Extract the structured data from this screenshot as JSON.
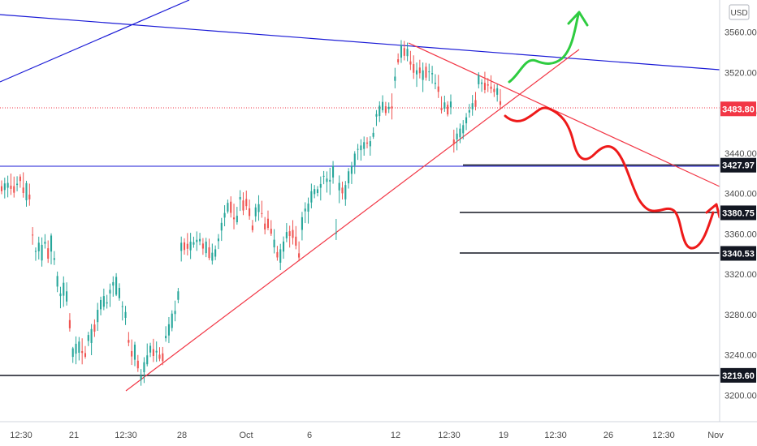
{
  "chart_data": {
    "type": "candlestick",
    "currency": "USD",
    "y_axis": {
      "min": 3180,
      "max": 3590,
      "ticks": [
        "3200.00",
        "3240.00",
        "3280.00",
        "3320.00",
        "3360.00",
        "3400.00",
        "3440.00",
        "3480.00",
        "3520.00",
        "3560.00"
      ]
    },
    "x_axis": {
      "labels": [
        "12:30",
        "21",
        "12:30",
        "28",
        "Oct",
        "6",
        "12",
        "12:30",
        "19",
        "12:30",
        "26",
        "12:30",
        "Nov"
      ]
    },
    "price_badges": [
      {
        "label": "3483.80",
        "value": 3483.8,
        "color": "#f23645"
      },
      {
        "label": "3427.97",
        "value": 3427.97,
        "color": "#131722"
      },
      {
        "label": "3380.75",
        "value": 3380.75,
        "color": "#131722"
      },
      {
        "label": "3340.53",
        "value": 3340.53,
        "color": "#131722"
      },
      {
        "label": "3219.60",
        "value": 3219.6,
        "color": "#131722"
      }
    ],
    "candles": [
      [
        3407.1,
        3412.9,
        3399.2,
        3402.2
      ],
      [
        3403.4,
        3415.6,
        3395.0,
        3409.9
      ],
      [
        3405.6,
        3417.6,
        3396.1,
        3410.4
      ],
      [
        3407.7,
        3419.7,
        3398.5,
        3404.5
      ],
      [
        3407.2,
        3416.7,
        3395.9,
        3400.7
      ],
      [
        3408.4,
        3417.0,
        3402.1,
        3409.6
      ],
      [
        3416.7,
        3419.0,
        3405.6,
        3412.3
      ],
      [
        3405.8,
        3420.9,
        3395.8,
        3400.4
      ],
      [
        3393.2,
        3412.5,
        3386.8,
        3410.2
      ],
      [
        3398.8,
        3409.7,
        3387.8,
        3394.1
      ],
      [
        3359.1,
        3366.6,
        3349.1,
        3358.3
      ],
      [
        3342.2,
        3346.4,
        3333.2,
        3342.9
      ],
      [
        3342.6,
        3357.1,
        3334.5,
        3351.1
      ],
      [
        3333.5,
        3356.4,
        3327.4,
        3349.0
      ],
      [
        3350.1,
        3359.6,
        3345.3,
        3352.0
      ],
      [
        3345.6,
        3353.4,
        3331.1,
        3335.3
      ],
      [
        3342.3,
        3360.4,
        3329.6,
        3358.2
      ],
      [
        3334.1,
        3342.8,
        3329.0,
        3335.8
      ],
      [
        3307.6,
        3322.5,
        3302.1,
        3318.1
      ],
      [
        3298.2,
        3307.4,
        3286.1,
        3300.8
      ],
      [
        3298.6,
        3317.7,
        3287.5,
        3311.4
      ],
      [
        3292.8,
        3311.8,
        3288.8,
        3302.9
      ],
      [
        3274.4,
        3281.3,
        3263.0,
        3266.3
      ],
      [
        3237.9,
        3247.8,
        3231.9,
        3246.4
      ],
      [
        3241.1,
        3258.2,
        3230.6,
        3250.9
      ],
      [
        3242.0,
        3257.6,
        3234.4,
        3253.1
      ],
      [
        3243.6,
        3256.3,
        3230.5,
        3241.8
      ],
      [
        3241.7,
        3248.7,
        3236.1,
        3238.0
      ],
      [
        3253.7,
        3262.8,
        3248.6,
        3259.6
      ],
      [
        3251.7,
        3270.5,
        3239.6,
        3265.5
      ],
      [
        3270.0,
        3275.1,
        3257.7,
        3263.0
      ],
      [
        3272.4,
        3291.5,
        3263.7,
        3284.6
      ],
      [
        3285.1,
        3297.6,
        3279.1,
        3294.3
      ],
      [
        3287.6,
        3305.6,
        3284.2,
        3298.2
      ],
      [
        3290.8,
        3299.4,
        3285.8,
        3292.0
      ],
      [
        3300.8,
        3310.6,
        3287.4,
        3304.4
      ],
      [
        3308.6,
        3317.8,
        3297.6,
        3312.0
      ],
      [
        3299.6,
        3320.9,
        3298.2,
        3317.2
      ],
      [
        3296.1,
        3310.9,
        3293.6,
        3306.3
      ],
      [
        3288.2,
        3293.1,
        3274.0,
        3288.2
      ],
      [
        3276.6,
        3288.5,
        3269.5,
        3282.4
      ],
      [
        3254.7,
        3262.6,
        3248.5,
        3252.0
      ],
      [
        3243.7,
        3255.2,
        3229.9,
        3238.3
      ],
      [
        3235.1,
        3252.9,
        3228.7,
        3250.0
      ],
      [
        3234.1,
        3239.8,
        3223.0,
        3226.6
      ],
      [
        3215.0,
        3225.8,
        3209.3,
        3219.4
      ],
      [
        3222.7,
        3237.6,
        3212.0,
        3232.6
      ],
      [
        3230.6,
        3251.2,
        3228.5,
        3239.4
      ],
      [
        3242.2,
        3251.9,
        3237.7,
        3248.9
      ],
      [
        3245.6,
        3255.8,
        3232.8,
        3238.8
      ],
      [
        3242.3,
        3253.2,
        3233.0,
        3243.9
      ],
      [
        3240.1,
        3247.5,
        3233.6,
        3236.0
      ],
      [
        3241.4,
        3247.7,
        3229.7,
        3233.7
      ],
      [
        3256.4,
        3268.3,
        3252.9,
        3258.7
      ],
      [
        3259.1,
        3277.4,
        3251.6,
        3270.3
      ],
      [
        3266.6,
        3284.1,
        3263.3,
        3280.8
      ],
      [
        3280.4,
        3293.7,
        3273.2,
        3283.5
      ],
      [
        3294.5,
        3306.3,
        3291.1,
        3302.9
      ],
      [
        3343.0,
        3357.2,
        3332.5,
        3351.1
      ],
      [
        3351.4,
        3355.5,
        3339.3,
        3343.9
      ],
      [
        3350.0,
        3360.7,
        3338.5,
        3345.1
      ],
      [
        3343.6,
        3360.9,
        3334.9,
        3352.1
      ],
      [
        3349.2,
        3357.1,
        3346.1,
        3351.6
      ],
      [
        3351.8,
        3362.3,
        3343.0,
        3354.0
      ],
      [
        3352.5,
        3360.9,
        3348.7,
        3354.8
      ],
      [
        3350.3,
        3355.7,
        3339.1,
        3345.3
      ],
      [
        3340.8,
        3356.0,
        3336.8,
        3352.2
      ],
      [
        3346.5,
        3355.1,
        3333.8,
        3336.0
      ],
      [
        3333.3,
        3350.2,
        3329.4,
        3341.2
      ],
      [
        3337.3,
        3348.4,
        3333.8,
        3344.6
      ],
      [
        3352.7,
        3359.7,
        3344.8,
        3355.2
      ],
      [
        3363.2,
        3375.7,
        3352.9,
        3370.8
      ],
      [
        3376.0,
        3388.3,
        3367.4,
        3380.6
      ],
      [
        3382.0,
        3393.9,
        3380.0,
        3390.6
      ],
      [
        3391.8,
        3397.1,
        3376.1,
        3380.7
      ],
      [
        3376.1,
        3389.8,
        3364.4,
        3374.4
      ],
      [
        3371.4,
        3386.7,
        3369.0,
        3377.8
      ],
      [
        3394.0,
        3403.2,
        3382.6,
        3396.4
      ],
      [
        3393.0,
        3401.1,
        3378.5,
        3383.1
      ],
      [
        3394.5,
        3402.8,
        3383.6,
        3387.4
      ],
      [
        3385.2,
        3393.9,
        3373.9,
        3377.6
      ],
      [
        3368.1,
        3373.7,
        3361.3,
        3363.5
      ],
      [
        3377.3,
        3389.7,
        3371.8,
        3386.1
      ],
      [
        3381.5,
        3398.2,
        3372.9,
        3389.3
      ],
      [
        3380.4,
        3392.7,
        3375.9,
        3379.7
      ],
      [
        3370.1,
        3376.6,
        3359.4,
        3364.2
      ],
      [
        3374.9,
        3383.0,
        3363.5,
        3365.8
      ],
      [
        3364.9,
        3373.5,
        3357.8,
        3360.0
      ],
      [
        3346.5,
        3364.6,
        3340.5,
        3354.1
      ],
      [
        3341.8,
        3348.0,
        3333.3,
        3336.5
      ],
      [
        3331.3,
        3350.0,
        3324.0,
        3344.6
      ],
      [
        3342.3,
        3357.3,
        3335.2,
        3352.3
      ],
      [
        3355.5,
        3370.6,
        3351.6,
        3361.7
      ],
      [
        3362.5,
        3368.0,
        3346.3,
        3357.8
      ],
      [
        3363.7,
        3373.5,
        3349.3,
        3355.9
      ],
      [
        3357.1,
        3367.6,
        3344.6,
        3348.2
      ],
      [
        3340.6,
        3352.4,
        3332.7,
        3336.4
      ],
      [
        3363.8,
        3381.7,
        3353.4,
        3376.4
      ],
      [
        3382.2,
        3391.2,
        3370.6,
        3384.9
      ],
      [
        3381.9,
        3395.9,
        3370.1,
        3389.9
      ],
      [
        3391.0,
        3409.7,
        3385.2,
        3402.2
      ],
      [
        3399.3,
        3408.3,
        3395.2,
        3404.3
      ],
      [
        3400.4,
        3407.3,
        3397.0,
        3404.1
      ],
      [
        3405.6,
        3416.8,
        3393.0,
        3409.3
      ],
      [
        3416.6,
        3422.2,
        3409.1,
        3417.4
      ],
      [
        3411.4,
        3421.8,
        3400.8,
        3414.7
      ],
      [
        3411.7,
        3425.4,
        3398.5,
        3413.4
      ],
      [
        3415.8,
        3432.1,
        3409.6,
        3427.3
      ],
      [
        3360.1,
        3374.7,
        3353.8,
        3360.8
      ],
      [
        3403.0,
        3417.8,
        3390.3,
        3410.4
      ],
      [
        3405.7,
        3411.7,
        3394.0,
        3400.1
      ],
      [
        3394.1,
        3412.3,
        3387.7,
        3408.3
      ],
      [
        3410.0,
        3425.2,
        3404.8,
        3421.9
      ],
      [
        3419.4,
        3431.3,
        3409.3,
        3427.4
      ],
      [
        3427.8,
        3441.9,
        3419.3,
        3439.4
      ],
      [
        3443.7,
        3449.1,
        3433.2,
        3444.1
      ],
      [
        3442.9,
        3453.7,
        3432.5,
        3447.5
      ],
      [
        3444.1,
        3456.4,
        3437.4,
        3450.8
      ],
      [
        3450.4,
        3455.7,
        3444.7,
        3449.4
      ],
      [
        3446.7,
        3456.6,
        3437.4,
        3451.8
      ],
      [
        3456.1,
        3465.4,
        3454.1,
        3460.0
      ],
      [
        3476.2,
        3482.6,
        3466.9,
        3478.6
      ],
      [
        3476.7,
        3491.3,
        3470.8,
        3487.0
      ],
      [
        3482.5,
        3497.3,
        3480.1,
        3490.7
      ],
      [
        3486.3,
        3490.8,
        3477.1,
        3479.7
      ],
      [
        3483.6,
        3490.2,
        3479.6,
        3485.8
      ],
      [
        3486.2,
        3499.2,
        3473.3,
        3484.3
      ],
      [
        3511.6,
        3524.5,
        3504.2,
        3515.8
      ],
      [
        3533.0,
        3538.8,
        3527.7,
        3530.0
      ],
      [
        3534.6,
        3552.0,
        3529.4,
        3547.1
      ],
      [
        3544.1,
        3551.2,
        3531.9,
        3536.4
      ],
      [
        3536.1,
        3549.5,
        3531.0,
        3543.3
      ],
      [
        3530.9,
        3541.3,
        3522.3,
        3527.8
      ],
      [
        3528.2,
        3536.9,
        3513.5,
        3519.6
      ],
      [
        3518.0,
        3529.8,
        3505.6,
        3522.1
      ],
      [
        3524.8,
        3532.5,
        3514.0,
        3519.2
      ],
      [
        3512.5,
        3529.8,
        3500.5,
        3522.0
      ],
      [
        3525.6,
        3529.4,
        3511.8,
        3514.8
      ],
      [
        3520.4,
        3528.6,
        3511.3,
        3520.9
      ],
      [
        3518.1,
        3526.5,
        3508.8,
        3519.3
      ],
      [
        3508.6,
        3518.2,
        3503.3,
        3509.7
      ],
      [
        3506.0,
        3517.6,
        3494.6,
        3500.7
      ],
      [
        3485.0,
        3496.3,
        3479.2,
        3482.6
      ],
      [
        3484.0,
        3496.9,
        3480.9,
        3490.2
      ],
      [
        3487.8,
        3491.4,
        3476.3,
        3478.3
      ],
      [
        3485.4,
        3498.1,
        3478.3,
        3491.1
      ],
      [
        3453.4,
        3463.2,
        3440.5,
        3448.7
      ],
      [
        3453.5,
        3465.1,
        3442.7,
        3459.3
      ],
      [
        3455.6,
        3469.3,
        3449.8,
        3464.2
      ],
      [
        3459.6,
        3472.7,
        3453.6,
        3467.7
      ],
      [
        3469.5,
        3479.7,
        3462.7,
        3475.5
      ],
      [
        3480.2,
        3488.7,
        3475.2,
        3482.5
      ],
      [
        3483.4,
        3497.6,
        3477.0,
        3489.5
      ],
      [
        3492.5,
        3500.6,
        3482.3,
        3485.8
      ],
      [
        3508.2,
        3520.1,
        3504.1,
        3517.0
      ],
      [
        3508.6,
        3513.3,
        3500.7,
        3510.0
      ],
      [
        3509.6,
        3520.6,
        3499.2,
        3502.6
      ],
      [
        3508.1,
        3514.4,
        3500.5,
        3506.9
      ],
      [
        3505.9,
        3517.1,
        3499.3,
        3503.6
      ],
      [
        3503.6,
        3508.2,
        3495.6,
        3500.5
      ],
      [
        3497.8,
        3508.2,
        3491.0,
        3504.3
      ],
      [
        3491.4,
        3503.4,
        3483.0,
        3487.8
      ]
    ],
    "series": [
      {
        "name": "Upper trendline"
      },
      {
        "name": "Lower trendline"
      }
    ]
  }
}
